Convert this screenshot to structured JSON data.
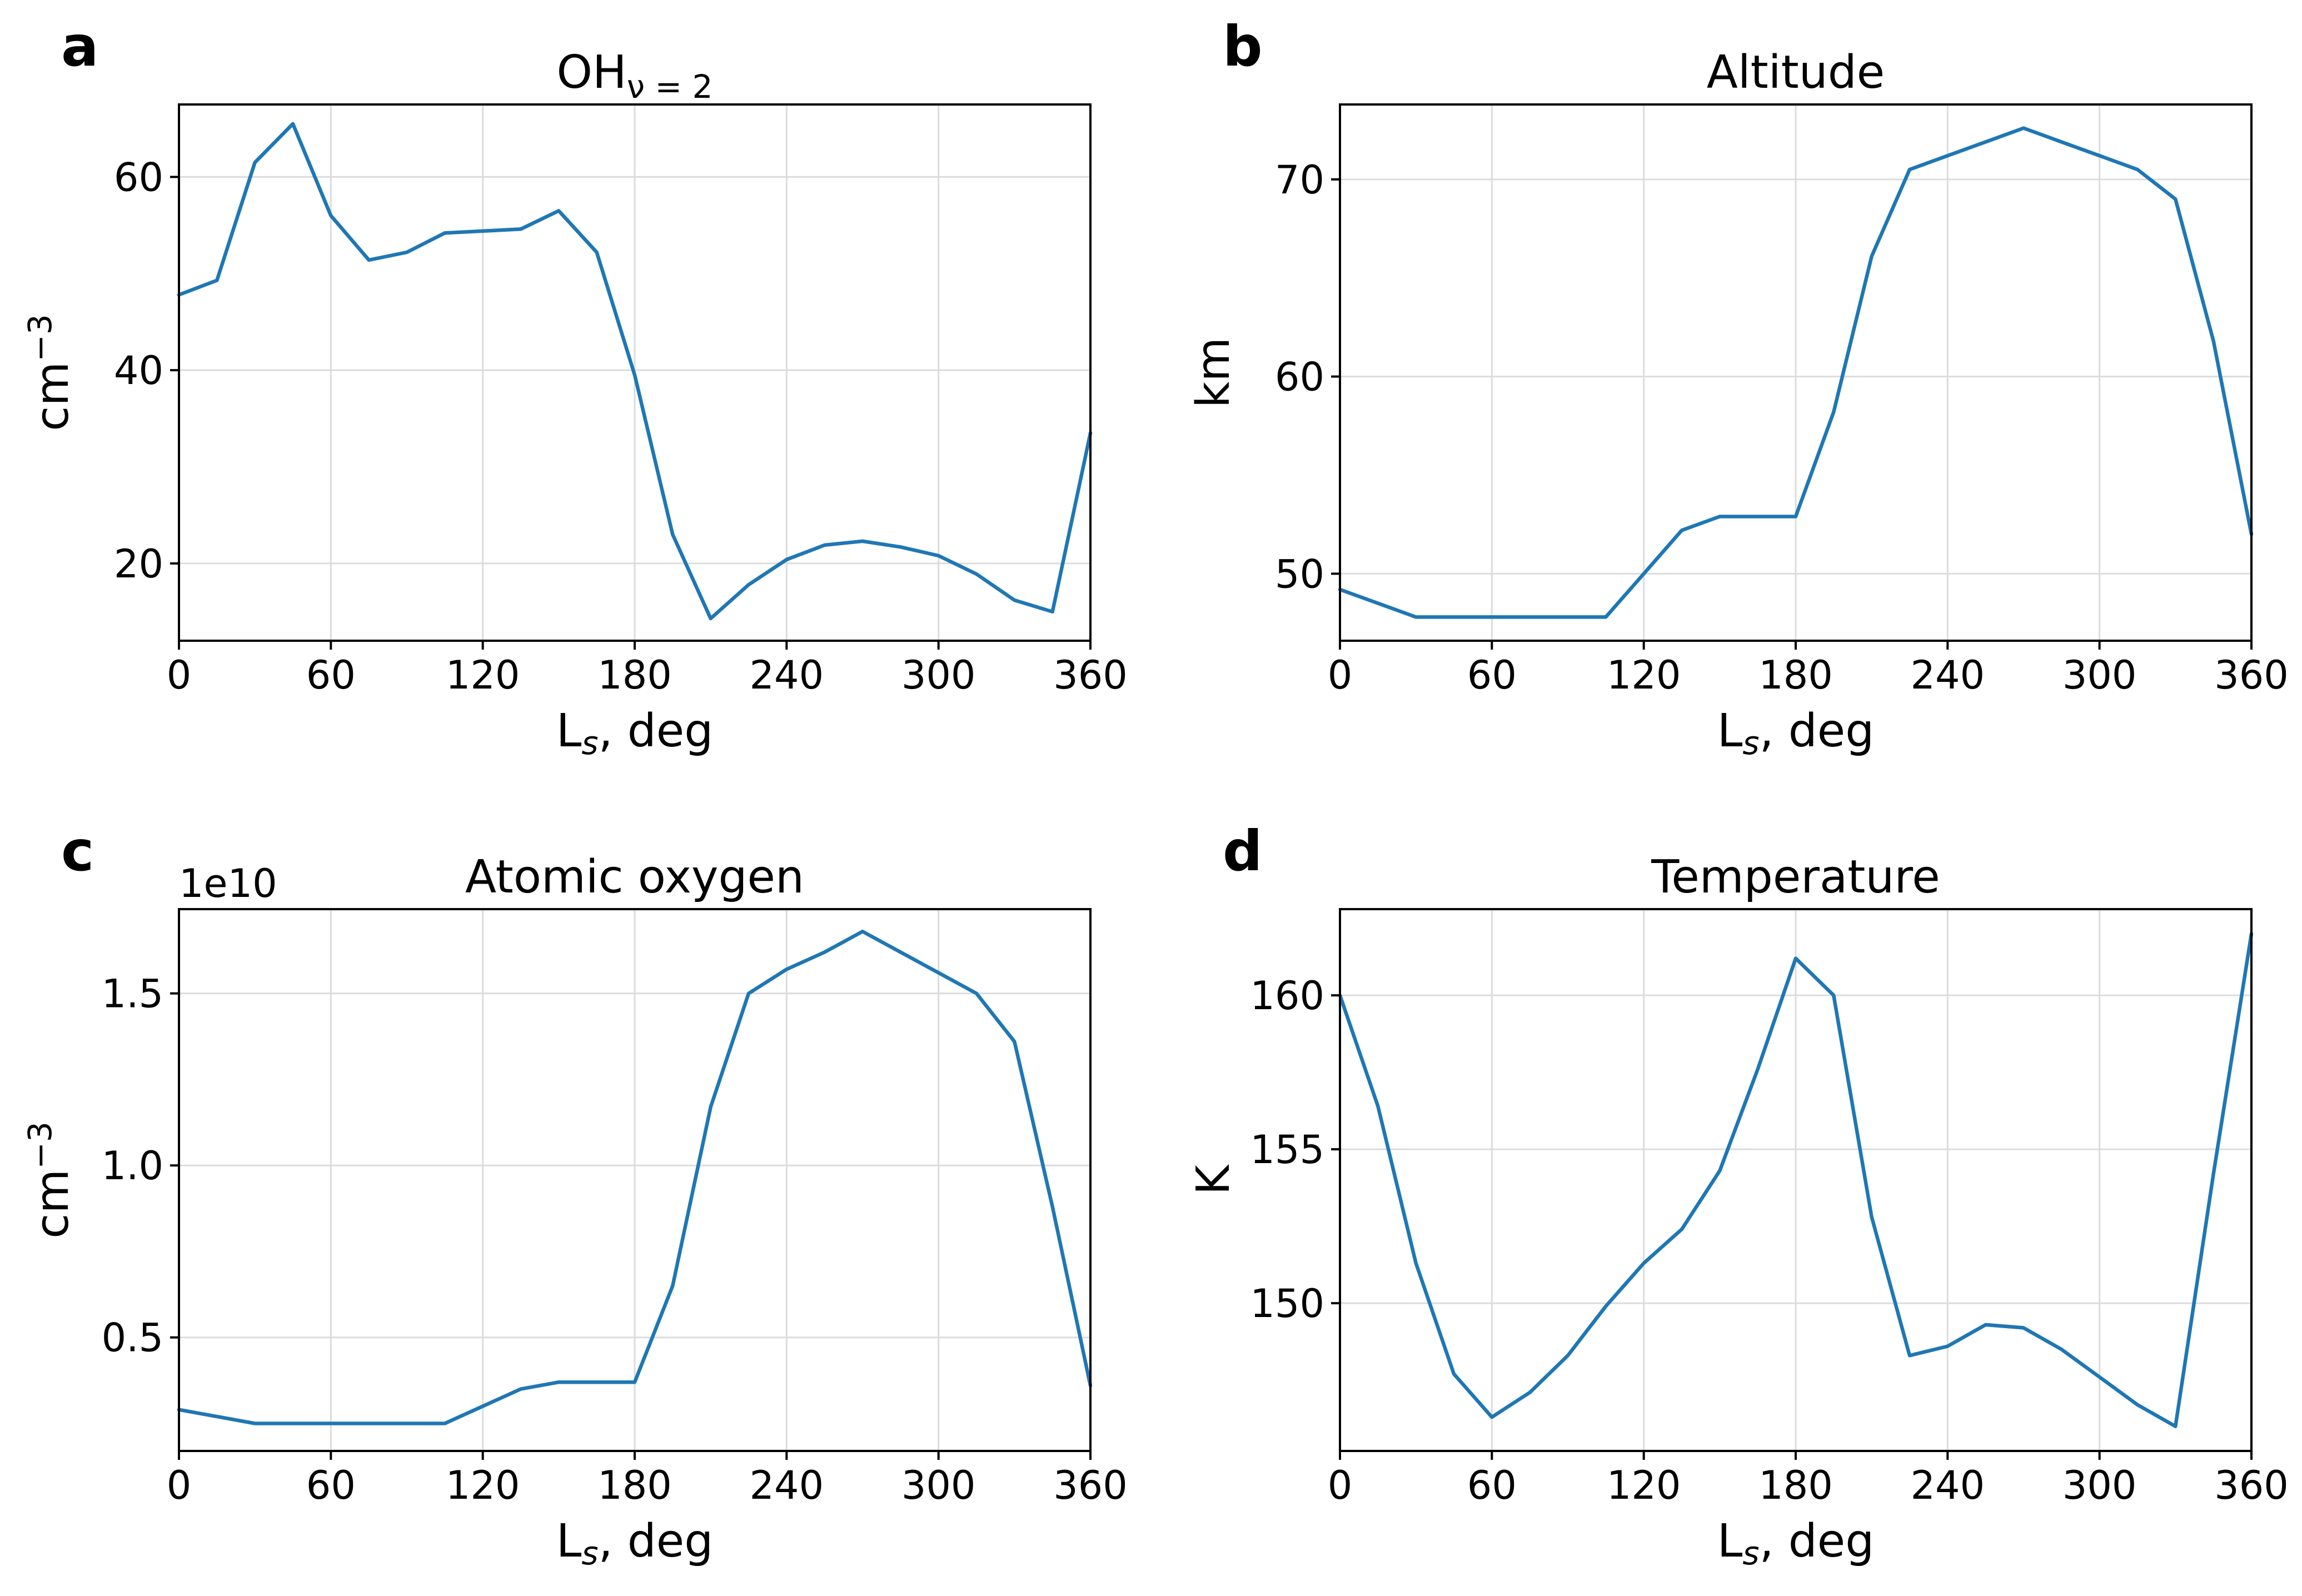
{
  "colors": {
    "line": "#1f77b4"
  },
  "chart_data": [
    {
      "panel": "a",
      "type": "line",
      "title": "OH",
      "title_sub": "ν = 2",
      "xlabel": "L",
      "xlabel_sub": "s",
      "xlabel_suffix": ", deg",
      "ylabel": "cm",
      "ylabel_sup": "−3",
      "xlim": [
        0,
        360
      ],
      "ylim": [
        12,
        67.5
      ],
      "xticks": [
        0,
        60,
        120,
        180,
        240,
        300,
        360
      ],
      "yticks": [
        20,
        40,
        60
      ],
      "ytick_labels": [
        "20",
        "40",
        "60"
      ],
      "grid": true,
      "x": [
        0,
        15,
        30,
        45,
        60,
        75,
        90,
        105,
        120,
        135,
        150,
        165,
        180,
        195,
        210,
        225,
        240,
        255,
        270,
        285,
        300,
        315,
        330,
        345,
        360
      ],
      "values": [
        47.8,
        49.3,
        61.5,
        65.5,
        56.0,
        51.4,
        52.2,
        54.2,
        54.4,
        54.6,
        56.5,
        52.2,
        39.5,
        23.0,
        14.3,
        17.8,
        20.4,
        21.9,
        22.3,
        21.7,
        20.8,
        18.9,
        16.2,
        15.0,
        33.5
      ]
    },
    {
      "panel": "b",
      "type": "line",
      "title": "Altitude",
      "xlabel": "L",
      "xlabel_sub": "s",
      "xlabel_suffix": ", deg",
      "ylabel": "km",
      "xlim": [
        0,
        360
      ],
      "ylim": [
        46.6,
        73.8
      ],
      "xticks": [
        0,
        60,
        120,
        180,
        240,
        300,
        360
      ],
      "yticks": [
        50,
        60,
        70
      ],
      "ytick_labels": [
        "50",
        "60",
        "70"
      ],
      "grid": true,
      "x": [
        0,
        15,
        30,
        45,
        60,
        75,
        90,
        105,
        120,
        135,
        150,
        165,
        180,
        195,
        210,
        225,
        240,
        255,
        270,
        285,
        300,
        315,
        330,
        345,
        360
      ],
      "values": [
        49.2,
        48.5,
        47.8,
        47.8,
        47.8,
        47.8,
        47.8,
        47.8,
        50.0,
        52.2,
        52.9,
        52.9,
        52.9,
        58.2,
        66.1,
        70.5,
        71.2,
        71.9,
        72.6,
        71.9,
        71.2,
        70.5,
        69.0,
        61.8,
        52.0
      ]
    },
    {
      "panel": "c",
      "type": "line",
      "title": "Atomic oxygen",
      "offset_text": "1e10",
      "xlabel": "L",
      "xlabel_sub": "s",
      "xlabel_suffix": ", deg",
      "ylabel": "cm",
      "ylabel_sup": "−3",
      "xlim": [
        0,
        360
      ],
      "ylim": [
        0.17,
        1.745
      ],
      "xticks": [
        0,
        60,
        120,
        180,
        240,
        300,
        360
      ],
      "yticks": [
        0.5,
        1.0,
        1.5
      ],
      "ytick_labels": [
        "0.5",
        "1.0",
        "1.5"
      ],
      "grid": true,
      "x": [
        0,
        15,
        30,
        45,
        60,
        75,
        90,
        105,
        120,
        135,
        150,
        165,
        180,
        195,
        210,
        225,
        240,
        255,
        270,
        285,
        300,
        315,
        330,
        345,
        360
      ],
      "values": [
        0.29,
        0.27,
        0.25,
        0.25,
        0.25,
        0.25,
        0.25,
        0.25,
        0.3,
        0.35,
        0.37,
        0.37,
        0.37,
        0.65,
        1.17,
        1.5,
        1.57,
        1.62,
        1.68,
        1.62,
        1.56,
        1.5,
        1.36,
        0.88,
        0.36
      ]
    },
    {
      "panel": "d",
      "type": "line",
      "title": "Temperature",
      "xlabel": "L",
      "xlabel_sub": "s",
      "xlabel_suffix": ", deg",
      "ylabel": "K",
      "xlim": [
        0,
        360
      ],
      "ylim": [
        145.2,
        162.8
      ],
      "xticks": [
        0,
        60,
        120,
        180,
        240,
        300,
        360
      ],
      "yticks": [
        150,
        155,
        160
      ],
      "ytick_labels": [
        "150",
        "155",
        "160"
      ],
      "grid": true,
      "x": [
        0,
        15,
        30,
        45,
        60,
        75,
        90,
        105,
        120,
        135,
        150,
        165,
        180,
        195,
        210,
        225,
        240,
        255,
        270,
        285,
        300,
        315,
        330,
        345,
        360
      ],
      "values": [
        160.0,
        156.4,
        151.3,
        147.7,
        146.3,
        147.1,
        148.3,
        149.9,
        151.3,
        152.4,
        154.3,
        157.6,
        161.2,
        160.0,
        152.8,
        148.3,
        148.6,
        149.3,
        149.2,
        148.5,
        147.6,
        146.7,
        146.0,
        154.2,
        162.0
      ]
    }
  ]
}
